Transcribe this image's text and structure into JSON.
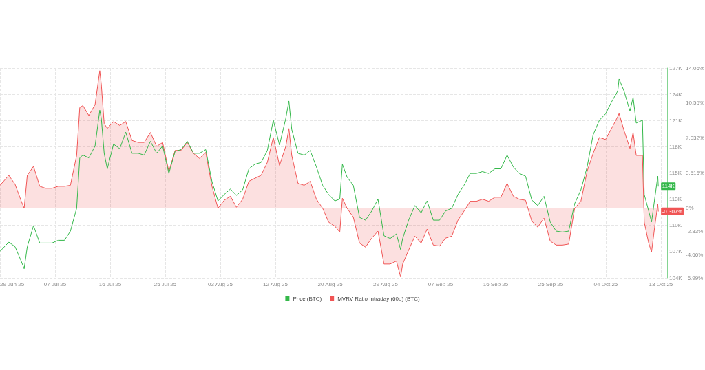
{
  "chart_data": {
    "type": "line",
    "x": [
      "--06-29T00:00",
      "--06-30T10:00",
      "--07-01T10:00",
      "--07-02T10:00",
      "--07-02T21:00",
      "--07-03T09:00",
      "--07-04T09:00",
      "--07-05T09:00",
      "--07-06T08:00",
      "--07-07T08:00",
      "--07-08T08:00",
      "--07-09T08:00",
      "--07-10T07:00",
      "--07-11T07:00",
      "--07-11T19:00",
      "--07-12T07:00",
      "--07-13T06:00",
      "--07-14T06:00",
      "--07-15T00:00",
      "--07-15T06:00",
      "--07-15T17:00",
      "--07-16T05:00",
      "--07-17T05:00",
      "--07-18T05:00",
      "--07-19T04:00",
      "--07-20T04:00",
      "--07-21T04:00",
      "--07-22T03:00",
      "--07-23T03:00",
      "--07-24T03:00",
      "--07-25T02:00",
      "--07-26T02:00",
      "--07-27T02:00",
      "--07-28T01:00",
      "--07-29T01:00",
      "--07-30T01:00",
      "--07-31T00:00",
      "--08-01T00:00",
      "--08-02T00:00",
      "--08-02T23:00",
      "--08-03T23:00",
      "--08-04T23:00",
      "--08-05T22:00",
      "--08-06T22:00",
      "--08-07T22:00",
      "--08-08T21:00",
      "--08-09T21:00",
      "--08-10T21:00",
      "--08-11T20:00",
      "--08-12T20:00",
      "--08-13T20:00",
      "--08-14T08:00",
      "--08-14T19:00",
      "--08-15T19:00",
      "--08-16T19:00",
      "--08-17T18:00",
      "--08-18T18:00",
      "--08-19T18:00",
      "--08-20T17:00",
      "--08-21T17:00",
      "--08-22T12:00",
      "--08-22T22:00",
      "--08-23T16:00",
      "--08-24T16:00",
      "--08-25T16:00",
      "--08-26T15:00",
      "--08-27T15:00",
      "--08-28T15:00",
      "--08-29T14:00",
      "--08-30T14:00",
      "--08-31T14:00",
      "--09-01T06:00",
      "--09-01T14:00",
      "--09-02T13:00",
      "--09-03T13:00",
      "--09-04T13:00",
      "--09-05T12:00",
      "--09-06T12:00",
      "--09-07T12:00",
      "--09-08T11:00",
      "--09-09T11:00",
      "--09-10T11:00",
      "--09-11T10:00",
      "--09-12T10:00",
      "--09-13T10:00",
      "--09-14T09:00",
      "--09-15T09:00",
      "--09-16T09:00",
      "--09-17T08:00",
      "--09-18T08:00",
      "--09-19T08:00",
      "--09-20T07:00",
      "--09-21T07:00",
      "--09-22T07:00",
      "--09-23T06:00",
      "--09-24T06:00",
      "--09-25T06:00",
      "--09-26T05:00",
      "--09-27T05:00",
      "--09-28T05:00",
      "--09-29T04:00",
      "--09-30T04:00",
      "--10-01T04:00",
      "--10-02T03:00",
      "--10-03T03:00",
      "--10-04T03:00",
      "--10-05T02:00",
      "--10-06T02:00",
      "--10-06T07:00",
      "--10-07T02:00",
      "--10-08T01:00",
      "--10-08T13:00",
      "--10-09T01:00",
      "--10-10T01:00",
      "--10-10T08:00",
      "--10-11T01:00",
      "--10-11T12:00",
      "--10-12T00:00",
      "--10-12T12:00",
      "--10-12T14:00"
    ],
    "series": [
      {
        "name": "Price (BTC)",
        "color": "#34b84a",
        "values": [
          106900,
          107900,
          107400,
          105800,
          105000,
          107400,
          109700,
          107800,
          107800,
          107800,
          108100,
          108100,
          109100,
          111600,
          117100,
          117400,
          117100,
          118400,
          122300,
          121400,
          117600,
          115900,
          118600,
          118100,
          119900,
          117600,
          117600,
          117400,
          118900,
          117600,
          118400,
          115400,
          117800,
          118000,
          118900,
          117600,
          117600,
          118000,
          114500,
          112400,
          113100,
          113700,
          113000,
          113600,
          115900,
          116400,
          116600,
          117900,
          121200,
          118500,
          121400,
          123300,
          120200,
          117600,
          117400,
          117900,
          116100,
          114100,
          113100,
          112400,
          112600,
          116400,
          115000,
          114100,
          110600,
          110300,
          111300,
          112600,
          108600,
          108300,
          108800,
          107100,
          108300,
          110300,
          111900,
          111100,
          112400,
          110300,
          110300,
          111300,
          111600,
          113100,
          114100,
          115400,
          115400,
          115600,
          115400,
          115900,
          115900,
          117400,
          116100,
          115400,
          115100,
          112500,
          111900,
          112900,
          110100,
          109100,
          109000,
          109100,
          112100,
          113600,
          116100,
          119600,
          121200,
          121900,
          123200,
          124400,
          125700,
          124400,
          122200,
          123700,
          120900,
          121200,
          113100,
          111300,
          110100,
          112600,
          115100,
          114000
        ],
        "value_labels": [
          null,
          null,
          null,
          null,
          null,
          null,
          null,
          null,
          null,
          null,
          null,
          null,
          null,
          null,
          null,
          null,
          null,
          null,
          null,
          null,
          null,
          null,
          null,
          null,
          null,
          null,
          null,
          null,
          null,
          null,
          null,
          null,
          null,
          null,
          null,
          null,
          null,
          null,
          null,
          null,
          null,
          null,
          null,
          null,
          null,
          null,
          null,
          null,
          null,
          null,
          null,
          null,
          null,
          null,
          null,
          null,
          null,
          null,
          null,
          null,
          null,
          null,
          null,
          null,
          null,
          null,
          null,
          null,
          null,
          null,
          null,
          null,
          null,
          null,
          null,
          null,
          null,
          null,
          null,
          null,
          null,
          null,
          null,
          null,
          null,
          null,
          null,
          null,
          null,
          null,
          null,
          null,
          null,
          null,
          null,
          null,
          null,
          null,
          null,
          null,
          null,
          null,
          null,
          null,
          null,
          null,
          null,
          null,
          null,
          null,
          null,
          null,
          null,
          null,
          null,
          null,
          null,
          null,
          null,
          "114K"
        ]
      },
      {
        "name": "MVRV Ratio Intraday (60d) (BTC)",
        "type": "area",
        "color": "#f05454",
        "axis": "y2",
        "values": [
          2.3,
          3.3,
          2.4,
          0.7,
          0,
          3.3,
          4.2,
          2.2,
          2.0,
          2.0,
          2.2,
          2.2,
          2.3,
          5.3,
          10.1,
          10.3,
          9.3,
          10.4,
          13.8,
          12.4,
          8.5,
          8.0,
          8.7,
          8.3,
          8.7,
          6.8,
          6.6,
          6.6,
          7.6,
          6.2,
          6.6,
          3.7,
          5.8,
          5.8,
          6.6,
          5.5,
          5.0,
          5.6,
          2.2,
          0,
          0.8,
          1.2,
          0.1,
          0.9,
          2.7,
          3.0,
          3.3,
          4.6,
          7.1,
          4.3,
          6.2,
          8.0,
          5.3,
          2.5,
          2.3,
          2.7,
          0.9,
          0,
          -1.4,
          -1.8,
          -2.4,
          1.0,
          0,
          -0.9,
          -3.5,
          -3.9,
          -3.0,
          -2.3,
          -5.6,
          -5.6,
          -5.3,
          -6.9,
          -5.6,
          -4.2,
          -2.8,
          -3.5,
          -2.1,
          -3.7,
          -3.8,
          -3.0,
          -2.8,
          -1.2,
          -0.3,
          0.7,
          0.7,
          0.9,
          0.7,
          1.1,
          1.1,
          2.5,
          1.2,
          0.9,
          0.8,
          -1.3,
          -1.9,
          -1.0,
          -3.3,
          -3.7,
          -3.7,
          -3.6,
          0,
          0.7,
          3.7,
          5.5,
          7.1,
          6.9,
          8.0,
          9.2,
          9.5,
          7.8,
          6.0,
          7.6,
          5.3,
          5.3,
          -1.4,
          -3.5,
          -4.4,
          -1.9,
          0.4,
          -0.307
        ],
        "value_labels": [
          null,
          null,
          null,
          null,
          null,
          null,
          null,
          null,
          null,
          null,
          null,
          null,
          null,
          null,
          null,
          null,
          null,
          null,
          null,
          null,
          null,
          null,
          null,
          null,
          null,
          null,
          null,
          null,
          null,
          null,
          null,
          null,
          null,
          null,
          null,
          null,
          null,
          null,
          null,
          null,
          null,
          null,
          null,
          null,
          null,
          null,
          null,
          null,
          null,
          null,
          null,
          null,
          null,
          null,
          null,
          null,
          null,
          null,
          null,
          null,
          null,
          null,
          null,
          null,
          null,
          null,
          null,
          null,
          null,
          null,
          null,
          null,
          null,
          null,
          null,
          null,
          null,
          null,
          null,
          null,
          null,
          null,
          null,
          null,
          null,
          null,
          null,
          null,
          null,
          null,
          null,
          null,
          null,
          null,
          null,
          null,
          null,
          null,
          null,
          null,
          null,
          null,
          null,
          null,
          null,
          null,
          null,
          null,
          null,
          null,
          null,
          null,
          null,
          null,
          null,
          null,
          null,
          null,
          null,
          "-0.307%"
        ]
      }
    ],
    "xlim": [
      "--06-29T00:00",
      "--10-14T00:00"
    ],
    "xticks": [
      {
        "value": "--06-29T00:00",
        "label": "29 Jun 25"
      },
      {
        "value": "--07-07T20:00",
        "label": "07 Jul 25"
      },
      {
        "value": "--07-16T16:00",
        "label": "16 Jul 25"
      },
      {
        "value": "--07-25T12:00",
        "label": "25 Jul 25"
      },
      {
        "value": "--08-03T08:00",
        "label": "03 Aug 25"
      },
      {
        "value": "--08-12T04:00",
        "label": "12 Aug 25"
      },
      {
        "value": "--08-20T23:00",
        "label": "20 Aug 25"
      },
      {
        "value": "--08-29T20:00",
        "label": "29 Aug 25"
      },
      {
        "value": "--09-07T16:00",
        "label": "07 Sep 25"
      },
      {
        "value": "--09-16T12:00",
        "label": "16 Sep 25"
      },
      {
        "value": "--09-25T08:00",
        "label": "25 Sep 25"
      },
      {
        "value": "--10-04T04:00",
        "label": "04 Oct 25"
      },
      {
        "value": "--10-13T00:00",
        "label": "13 Oct 25"
      }
    ],
    "ylim": [
      104000,
      126900
    ],
    "yticks": [
      {
        "value": 104000,
        "label": "104K"
      },
      {
        "value": 106860,
        "label": "107K"
      },
      {
        "value": 109730,
        "label": "110K"
      },
      {
        "value": 112590,
        "label": "113K"
      },
      {
        "value": 115450,
        "label": "115K"
      },
      {
        "value": 118310,
        "label": "118K"
      },
      {
        "value": 121180,
        "label": "121K"
      },
      {
        "value": 124040,
        "label": "124K"
      },
      {
        "value": 126900,
        "label": "127K"
      }
    ],
    "y2lim": [
      -6.99,
      14.064
    ],
    "y2ticks": [
      {
        "value": -6.99,
        "label": "-6.99%"
      },
      {
        "value": -4.66,
        "label": "-4.66%"
      },
      {
        "value": -2.33,
        "label": "-2.33%"
      },
      {
        "value": 0,
        "label": "0%"
      },
      {
        "value": 3.516,
        "label": "3.516%"
      },
      {
        "value": 7.032,
        "label": "7.032%"
      },
      {
        "value": 10.548,
        "label": "10.55%"
      },
      {
        "value": 14.064,
        "label": "14.06%"
      }
    ],
    "ref_lines": [
      {
        "axis": "y2",
        "value": 0,
        "color": "#f4a3a3"
      }
    ],
    "grid": true,
    "legend": "bottom",
    "marker": "none"
  }
}
